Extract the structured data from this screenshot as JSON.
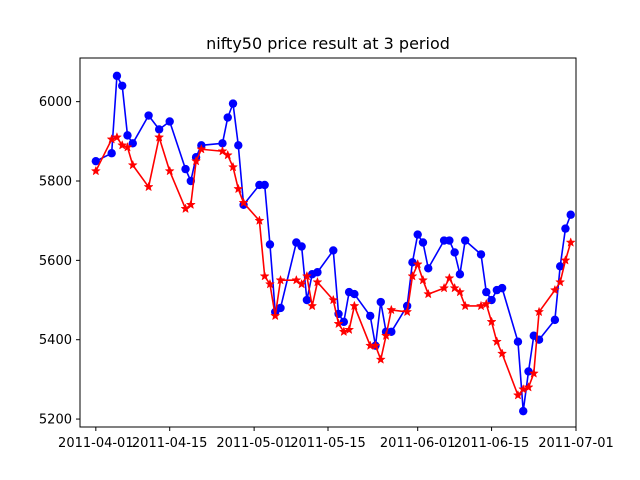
{
  "chart_data": {
    "type": "line",
    "title": "nifty50 price result at 3 period",
    "xlabel": "",
    "ylabel": "",
    "x_axis_type": "date",
    "xlim": [
      "2011-03-29",
      "2011-07-01"
    ],
    "ylim": [
      5180,
      6110
    ],
    "x_ticks": [
      "2011-04-01",
      "2011-04-15",
      "2011-05-01",
      "2011-05-15",
      "2011-06-01",
      "2011-06-15",
      "2011-07-01"
    ],
    "y_ticks": [
      5200,
      5400,
      5600,
      5800,
      6000
    ],
    "grid": false,
    "legend": "none",
    "series": [
      {
        "color": "#0000ff",
        "marker": "circle",
        "points": [
          [
            "2011-04-01",
            5850
          ],
          [
            "2011-04-04",
            5870
          ],
          [
            "2011-04-05",
            6065
          ],
          [
            "2011-04-06",
            6040
          ],
          [
            "2011-04-07",
            5915
          ],
          [
            "2011-04-08",
            5895
          ],
          [
            "2011-04-11",
            5965
          ],
          [
            "2011-04-13",
            5930
          ],
          [
            "2011-04-15",
            5950
          ],
          [
            "2011-04-18",
            5830
          ],
          [
            "2011-04-19",
            5800
          ],
          [
            "2011-04-20",
            5860
          ],
          [
            "2011-04-21",
            5890
          ],
          [
            "2011-04-25",
            5895
          ],
          [
            "2011-04-26",
            5960
          ],
          [
            "2011-04-27",
            5995
          ],
          [
            "2011-04-28",
            5890
          ],
          [
            "2011-04-29",
            5740
          ],
          [
            "2011-05-02",
            5790
          ],
          [
            "2011-05-03",
            5790
          ],
          [
            "2011-05-04",
            5640
          ],
          [
            "2011-05-05",
            5470
          ],
          [
            "2011-05-06",
            5480
          ],
          [
            "2011-05-09",
            5645
          ],
          [
            "2011-05-10",
            5635
          ],
          [
            "2011-05-11",
            5500
          ],
          [
            "2011-05-12",
            5565
          ],
          [
            "2011-05-13",
            5570
          ],
          [
            "2011-05-16",
            5625
          ],
          [
            "2011-05-17",
            5465
          ],
          [
            "2011-05-18",
            5445
          ],
          [
            "2011-05-19",
            5520
          ],
          [
            "2011-05-20",
            5515
          ],
          [
            "2011-05-23",
            5460
          ],
          [
            "2011-05-24",
            5385
          ],
          [
            "2011-05-25",
            5495
          ],
          [
            "2011-05-26",
            5420
          ],
          [
            "2011-05-27",
            5420
          ],
          [
            "2011-05-30",
            5485
          ],
          [
            "2011-05-31",
            5595
          ],
          [
            "2011-06-01",
            5665
          ],
          [
            "2011-06-02",
            5645
          ],
          [
            "2011-06-03",
            5580
          ],
          [
            "2011-06-06",
            5650
          ],
          [
            "2011-06-07",
            5650
          ],
          [
            "2011-06-08",
            5620
          ],
          [
            "2011-06-09",
            5565
          ],
          [
            "2011-06-10",
            5650
          ],
          [
            "2011-06-13",
            5615
          ],
          [
            "2011-06-14",
            5520
          ],
          [
            "2011-06-15",
            5500
          ],
          [
            "2011-06-16",
            5525
          ],
          [
            "2011-06-17",
            5530
          ],
          [
            "2011-06-20",
            5395
          ],
          [
            "2011-06-21",
            5220
          ],
          [
            "2011-06-22",
            5320
          ],
          [
            "2011-06-23",
            5410
          ],
          [
            "2011-06-24",
            5400
          ],
          [
            "2011-06-27",
            5450
          ],
          [
            "2011-06-28",
            5585
          ],
          [
            "2011-06-29",
            5680
          ],
          [
            "2011-06-30",
            5715
          ]
        ]
      },
      {
        "color": "#ff0000",
        "marker": "star",
        "points": [
          [
            "2011-04-01",
            5825
          ],
          [
            "2011-04-04",
            5905
          ],
          [
            "2011-04-05",
            5910
          ],
          [
            "2011-04-06",
            5890
          ],
          [
            "2011-04-07",
            5885
          ],
          [
            "2011-04-08",
            5840
          ],
          [
            "2011-04-11",
            5785
          ],
          [
            "2011-04-13",
            5910
          ],
          [
            "2011-04-15",
            5825
          ],
          [
            "2011-04-18",
            5730
          ],
          [
            "2011-04-19",
            5740
          ],
          [
            "2011-04-20",
            5850
          ],
          [
            "2011-04-21",
            5880
          ],
          [
            "2011-04-25",
            5875
          ],
          [
            "2011-04-26",
            5865
          ],
          [
            "2011-04-27",
            5835
          ],
          [
            "2011-04-28",
            5780
          ],
          [
            "2011-04-29",
            5745
          ],
          [
            "2011-05-02",
            5700
          ],
          [
            "2011-05-03",
            5560
          ],
          [
            "2011-05-04",
            5540
          ],
          [
            "2011-05-05",
            5460
          ],
          [
            "2011-05-06",
            5550
          ],
          [
            "2011-05-09",
            5550
          ],
          [
            "2011-05-10",
            5540
          ],
          [
            "2011-05-11",
            5560
          ],
          [
            "2011-05-12",
            5485
          ],
          [
            "2011-05-13",
            5545
          ],
          [
            "2011-05-16",
            5500
          ],
          [
            "2011-05-17",
            5440
          ],
          [
            "2011-05-18",
            5420
          ],
          [
            "2011-05-19",
            5425
          ],
          [
            "2011-05-20",
            5485
          ],
          [
            "2011-05-23",
            5385
          ],
          [
            "2011-05-24",
            5385
          ],
          [
            "2011-05-25",
            5350
          ],
          [
            "2011-05-26",
            5410
          ],
          [
            "2011-05-27",
            5475
          ],
          [
            "2011-05-30",
            5470
          ],
          [
            "2011-05-31",
            5560
          ],
          [
            "2011-06-01",
            5590
          ],
          [
            "2011-06-02",
            5550
          ],
          [
            "2011-06-03",
            5515
          ],
          [
            "2011-06-06",
            5530
          ],
          [
            "2011-06-07",
            5555
          ],
          [
            "2011-06-08",
            5530
          ],
          [
            "2011-06-09",
            5520
          ],
          [
            "2011-06-10",
            5485
          ],
          [
            "2011-06-13",
            5485
          ],
          [
            "2011-06-14",
            5490
          ],
          [
            "2011-06-15",
            5445
          ],
          [
            "2011-06-16",
            5395
          ],
          [
            "2011-06-17",
            5365
          ],
          [
            "2011-06-20",
            5260
          ],
          [
            "2011-06-21",
            5275
          ],
          [
            "2011-06-22",
            5280
          ],
          [
            "2011-06-23",
            5315
          ],
          [
            "2011-06-24",
            5470
          ],
          [
            "2011-06-27",
            5525
          ],
          [
            "2011-06-28",
            5545
          ],
          [
            "2011-06-29",
            5600
          ],
          [
            "2011-06-30",
            5645
          ]
        ]
      }
    ]
  }
}
